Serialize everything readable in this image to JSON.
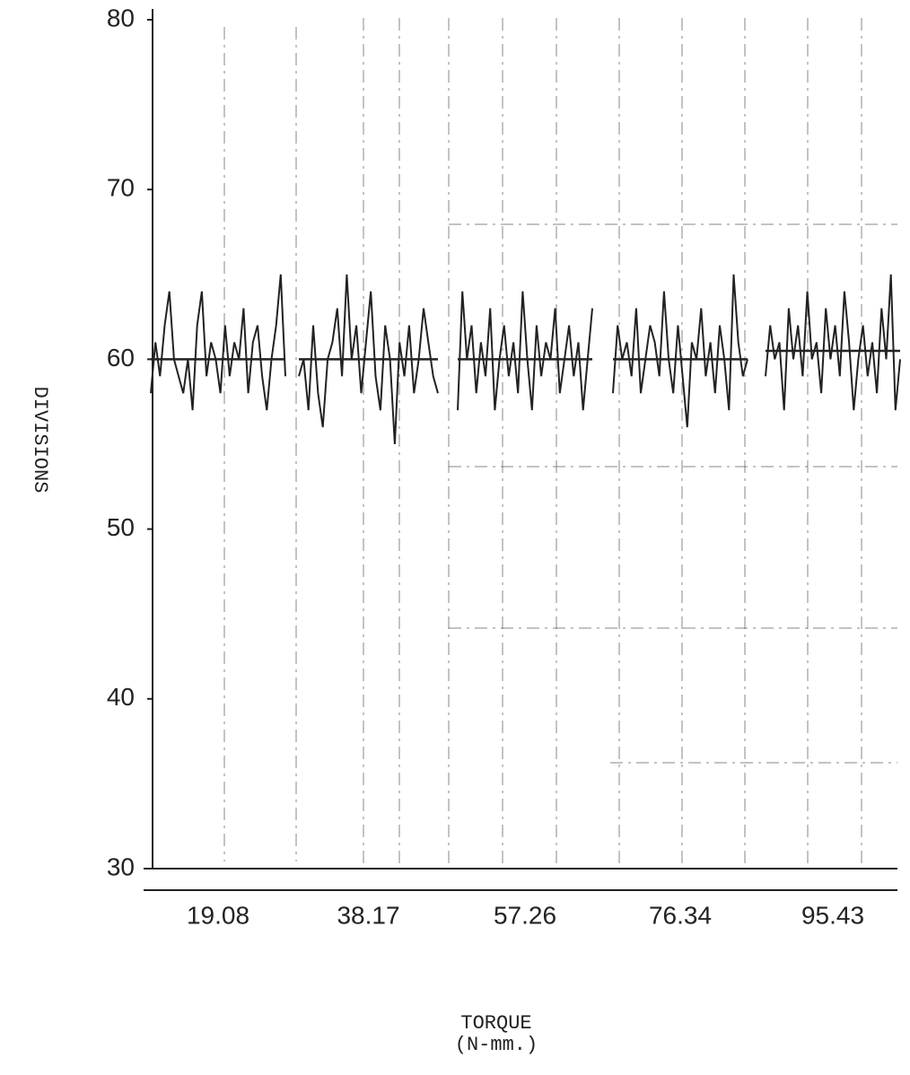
{
  "chart_data": {
    "type": "line",
    "x_label": "TORQUE",
    "x_unit": "(N-mm.)",
    "y_label": "DIVISIONS",
    "categories": [
      "19.08",
      "38.17",
      "57.26",
      "76.34",
      "95.43"
    ],
    "ylim": [
      30,
      80
    ],
    "yticks": [
      30,
      40,
      50,
      60,
      70,
      80
    ],
    "color": "#222222",
    "segments": [
      {
        "values": [
          58,
          61,
          59,
          62,
          64,
          60,
          59,
          58,
          60,
          57,
          62,
          64,
          59,
          61,
          60,
          58,
          62,
          59,
          61,
          60,
          63,
          58,
          61,
          62,
          59,
          57,
          60,
          62,
          65,
          59
        ],
        "mean": 60
      },
      {
        "values": [
          59,
          60,
          57,
          62,
          58,
          56,
          60,
          61,
          63,
          59,
          65,
          60,
          62,
          58,
          61,
          64,
          59,
          57,
          62,
          60,
          55,
          61,
          59,
          62,
          58,
          60,
          63,
          61,
          59,
          58
        ],
        "mean": 60
      },
      {
        "values": [
          57,
          64,
          60,
          62,
          58,
          61,
          59,
          63,
          57,
          60,
          62,
          59,
          61,
          58,
          64,
          60,
          57,
          62,
          59,
          61,
          60,
          63,
          58,
          60,
          62,
          59,
          61,
          57,
          60,
          63
        ],
        "mean": 60
      },
      {
        "values": [
          58,
          62,
          60,
          61,
          59,
          63,
          58,
          60,
          62,
          61,
          59,
          64,
          60,
          58,
          62,
          59,
          56,
          61,
          60,
          63,
          59,
          61,
          58,
          62,
          60,
          57,
          65,
          61,
          59,
          60
        ],
        "mean": 60
      },
      {
        "values": [
          59,
          62,
          60,
          61,
          57,
          63,
          60,
          62,
          59,
          64,
          60,
          61,
          58,
          63,
          60,
          62,
          59,
          64,
          61,
          57,
          60,
          62,
          59,
          61,
          58,
          63,
          60,
          65,
          57,
          60
        ],
        "mean": 60.5
      }
    ]
  }
}
